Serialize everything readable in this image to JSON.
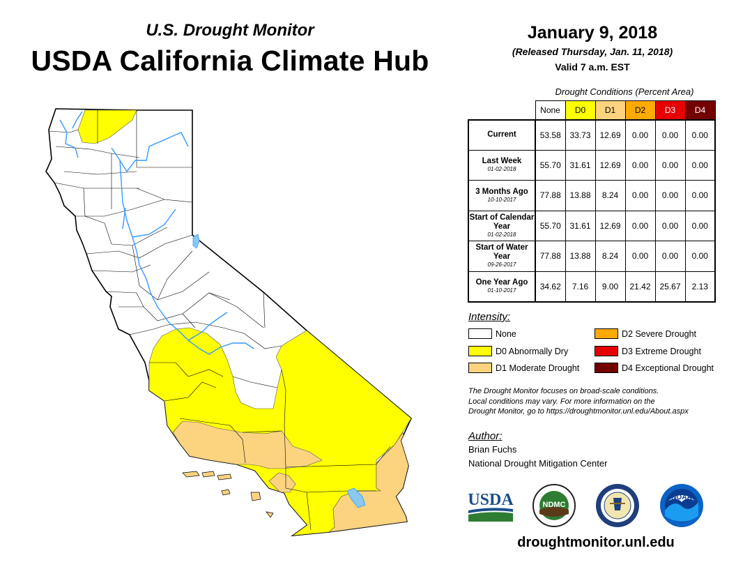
{
  "header": {
    "subtitle": "U.S. Drought Monitor",
    "title": "USDA California Climate Hub",
    "date": "January 9, 2018",
    "released": "(Released Thursday, Jan. 11, 2018)",
    "valid": "Valid 7 a.m. EST"
  },
  "table": {
    "caption": "Drought Conditions (Percent Area)",
    "columns": [
      "None",
      "D0",
      "D1",
      "D2",
      "D3",
      "D4"
    ],
    "column_colors": [
      "#ffffff",
      "#ffff00",
      "#fcd37f",
      "#ffaa00",
      "#e60000",
      "#730000"
    ],
    "rows": [
      {
        "label": "Current",
        "date": "",
        "values": [
          "53.58",
          "33.73",
          "12.69",
          "0.00",
          "0.00",
          "0.00"
        ]
      },
      {
        "label": "Last Week",
        "date": "01-02-2018",
        "values": [
          "55.70",
          "31.61",
          "12.69",
          "0.00",
          "0.00",
          "0.00"
        ]
      },
      {
        "label": "3 Months Ago",
        "date": "10-10-2017",
        "values": [
          "77.88",
          "13.88",
          "8.24",
          "0.00",
          "0.00",
          "0.00"
        ]
      },
      {
        "label": "Start of Calendar Year",
        "date": "01-02-2018",
        "values": [
          "55.70",
          "31.61",
          "12.69",
          "0.00",
          "0.00",
          "0.00"
        ]
      },
      {
        "label": "Start of Water Year",
        "date": "09-26-2017",
        "values": [
          "77.88",
          "13.88",
          "8.24",
          "0.00",
          "0.00",
          "0.00"
        ]
      },
      {
        "label": "One Year Ago",
        "date": "01-10-2017",
        "values": [
          "34.62",
          "7.16",
          "9.00",
          "21.42",
          "25.67",
          "2.13"
        ]
      }
    ]
  },
  "legend": {
    "title": "Intensity:",
    "items": [
      {
        "label": "None",
        "color": "#ffffff"
      },
      {
        "label": "D0 Abnormally Dry",
        "color": "#ffff00"
      },
      {
        "label": "D1 Moderate Drought",
        "color": "#fcd37f"
      },
      {
        "label": "D2 Severe Drought",
        "color": "#ffaa00"
      },
      {
        "label": "D3 Extreme Drought",
        "color": "#e60000"
      },
      {
        "label": "D4 Exceptional Drought",
        "color": "#730000"
      }
    ]
  },
  "disclaimer": {
    "line1": "The Drought Monitor focuses on broad-scale conditions.",
    "line2": "Local conditions may vary. For more information on the",
    "line3": "Drought Monitor, go to https://droughtmonitor.unl.edu/About.aspx"
  },
  "author": {
    "title": "Author:",
    "name": "Brian Fuchs",
    "org": "National Drought Mitigation Center"
  },
  "logos": {
    "usda": "USDA",
    "ndmc": "NDMC",
    "noaa": "NOAA"
  },
  "footer": {
    "url": "droughtmonitor.unl.edu"
  },
  "map": {
    "water_color": "#3399ff",
    "lake_color": "#8ac8f0"
  }
}
